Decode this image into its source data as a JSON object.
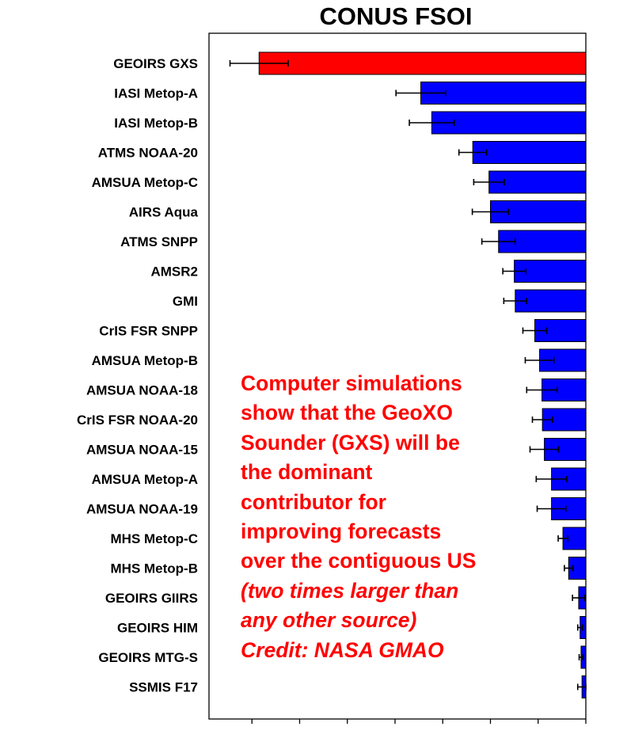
{
  "chart_data": {
    "type": "bar",
    "orientation": "horizontal",
    "title": "CONUS FSOI",
    "xlabel": "",
    "ylabel": "",
    "xlim": [
      -7.9,
      0
    ],
    "xticks": [
      -7,
      -6,
      -5,
      -4,
      -3,
      -2,
      -1,
      0
    ],
    "xtick_labels_shown": false,
    "grid": false,
    "categories": [
      "GEOIRS GXS",
      "IASI Metop-A",
      "IASI Metop-B",
      "ATMS NOAA-20",
      "AMSUA Metop-C",
      "AIRS Aqua",
      "ATMS SNPP",
      "AMSR2",
      "GMI",
      "CrIS FSR SNPP",
      "AMSUA Metop-B",
      "AMSUA NOAA-18",
      "CrIS FSR NOAA-20",
      "AMSUA NOAA-15",
      "AMSUA Metop-A",
      "AMSUA NOAA-19",
      "MHS Metop-C",
      "MHS Metop-B",
      "GEOIRS GIIRS",
      "GEOIRS HIM",
      "GEOIRS MTG-S",
      "SSMIS F17"
    ],
    "values": [
      -6.85,
      -3.46,
      -3.23,
      -2.37,
      -2.03,
      -2.0,
      -1.83,
      -1.5,
      -1.48,
      -1.07,
      -0.97,
      -0.92,
      -0.91,
      -0.87,
      -0.72,
      -0.72,
      -0.48,
      -0.36,
      -0.15,
      -0.12,
      -0.1,
      -0.08
    ],
    "errors": [
      0.61,
      0.52,
      0.47,
      0.29,
      0.32,
      0.38,
      0.35,
      0.24,
      0.24,
      0.25,
      0.3,
      0.32,
      0.21,
      0.3,
      0.32,
      0.3,
      0.1,
      0.09,
      0.13,
      0.05,
      0.04,
      0.09
    ],
    "colors": {
      "highlight": "#ff0000",
      "default": "#0000ff"
    },
    "highlight_index": 0
  },
  "annotation": {
    "lines": [
      "Computer simulations",
      "show that the GeoXO",
      "Sounder (GXS) will be",
      "the dominant",
      "contributor for",
      "improving forecasts",
      "over the contiguous US"
    ],
    "italic_lines": [
      "(two times larger than",
      "any other source)",
      "Credit: NASA GMAO"
    ],
    "color": "#ff0000"
  }
}
